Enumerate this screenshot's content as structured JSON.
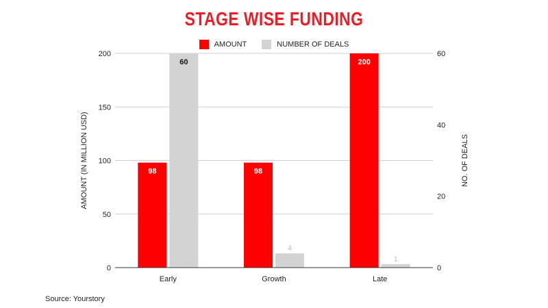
{
  "colors": {
    "amount": "#ff0000",
    "deals": "#d3d3d3",
    "title": "#ee1c25"
  },
  "chart_data": {
    "type": "bar",
    "title": "STAGE WISE FUNDING",
    "categories": [
      "Early",
      "Growth",
      "Late"
    ],
    "series": [
      {
        "name": "AMOUNT",
        "axis": "left",
        "values": [
          98,
          98,
          200
        ],
        "labels": [
          "98",
          "98",
          "200"
        ]
      },
      {
        "name": "NUMBER OF DEALS",
        "axis": "right",
        "values": [
          60,
          4,
          1
        ],
        "labels": [
          "60",
          "4",
          "1"
        ]
      }
    ],
    "ylabel_left": "AMOUNT (IN MILLION USD)",
    "ylabel_right": "NO. OF DEALS",
    "ylim_left": [
      0,
      200
    ],
    "ylim_right": [
      0,
      60
    ],
    "yticks_left": [
      0,
      50,
      100,
      150,
      200
    ],
    "yticks_right": [
      0,
      20,
      40,
      60
    ],
    "grid": true,
    "legend_position": "top"
  },
  "source": "Source: Yourstory"
}
